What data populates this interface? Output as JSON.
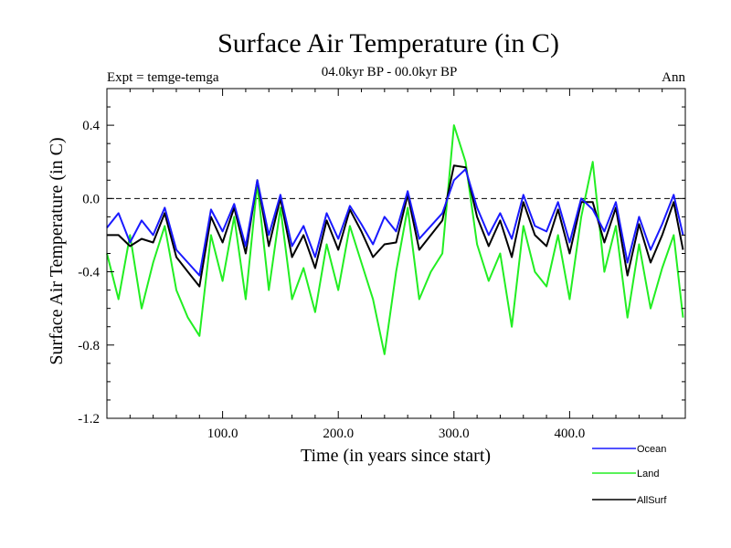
{
  "chart_data": {
    "type": "line",
    "title": "Surface Air Temperature (in C)",
    "subtitle": "04.0kyr BP - 00.0kyr BP",
    "left_label": "Expt = temge-temga",
    "right_label": "Ann",
    "xlabel": "Time (in years since start)",
    "ylabel": "Surface Air Temperature (in C)",
    "xlim": [
      0,
      500
    ],
    "ylim": [
      -1.2,
      0.6
    ],
    "xticks": [
      100,
      200,
      300,
      400
    ],
    "xtick_labels": [
      "100.0",
      "200.0",
      "300.0",
      "400.0"
    ],
    "yticks": [
      -1.2,
      -0.8,
      -0.4,
      0.0,
      0.4
    ],
    "ytick_labels": [
      "-1.2",
      "-0.8",
      "-0.4",
      "0.0",
      "0.4"
    ],
    "reference_line": 0.0,
    "legend_position": "below-right",
    "x": [
      0,
      10,
      20,
      30,
      40,
      50,
      60,
      70,
      80,
      90,
      100,
      110,
      120,
      130,
      140,
      150,
      160,
      170,
      180,
      190,
      200,
      210,
      220,
      230,
      240,
      250,
      260,
      270,
      280,
      290,
      300,
      310,
      320,
      330,
      340,
      350,
      360,
      370,
      380,
      390,
      400,
      410,
      420,
      430,
      440,
      450,
      460,
      470,
      480,
      490,
      498
    ],
    "series": [
      {
        "name": "Ocean",
        "color": "#1a1aff",
        "values": [
          -0.16,
          -0.08,
          -0.24,
          -0.12,
          -0.2,
          -0.05,
          -0.28,
          -0.35,
          -0.42,
          -0.06,
          -0.18,
          -0.03,
          -0.26,
          0.1,
          -0.2,
          0.02,
          -0.26,
          -0.15,
          -0.32,
          -0.08,
          -0.22,
          -0.04,
          -0.14,
          -0.25,
          -0.1,
          -0.18,
          0.04,
          -0.22,
          -0.15,
          -0.08,
          0.1,
          0.16,
          -0.05,
          -0.2,
          -0.08,
          -0.22,
          0.02,
          -0.15,
          -0.18,
          -0.02,
          -0.24,
          0.0,
          -0.06,
          -0.18,
          -0.02,
          -0.35,
          -0.1,
          -0.28,
          -0.14,
          0.02,
          -0.2
        ]
      },
      {
        "name": "Land",
        "color": "#22ee22",
        "values": [
          -0.3,
          -0.55,
          -0.2,
          -0.6,
          -0.35,
          -0.15,
          -0.5,
          -0.65,
          -0.75,
          -0.2,
          -0.45,
          -0.1,
          -0.55,
          0.08,
          -0.5,
          -0.05,
          -0.55,
          -0.38,
          -0.62,
          -0.25,
          -0.5,
          -0.15,
          -0.35,
          -0.55,
          -0.85,
          -0.4,
          -0.05,
          -0.55,
          -0.4,
          -0.3,
          0.4,
          0.2,
          -0.25,
          -0.45,
          -0.3,
          -0.7,
          -0.15,
          -0.4,
          -0.48,
          -0.2,
          -0.55,
          -0.1,
          0.2,
          -0.4,
          -0.15,
          -0.65,
          -0.25,
          -0.6,
          -0.38,
          -0.2,
          -0.65
        ]
      },
      {
        "name": "AllSurf",
        "color": "#000000",
        "values": [
          -0.2,
          -0.2,
          -0.26,
          -0.22,
          -0.24,
          -0.08,
          -0.32,
          -0.4,
          -0.48,
          -0.1,
          -0.24,
          -0.05,
          -0.3,
          0.1,
          -0.26,
          0.0,
          -0.32,
          -0.2,
          -0.38,
          -0.12,
          -0.28,
          -0.06,
          -0.18,
          -0.32,
          -0.25,
          -0.24,
          0.02,
          -0.28,
          -0.2,
          -0.12,
          0.18,
          0.17,
          -0.1,
          -0.26,
          -0.12,
          -0.32,
          -0.02,
          -0.2,
          -0.26,
          -0.06,
          -0.3,
          -0.02,
          -0.02,
          -0.24,
          -0.05,
          -0.42,
          -0.14,
          -0.35,
          -0.2,
          -0.02,
          -0.28
        ]
      }
    ]
  }
}
